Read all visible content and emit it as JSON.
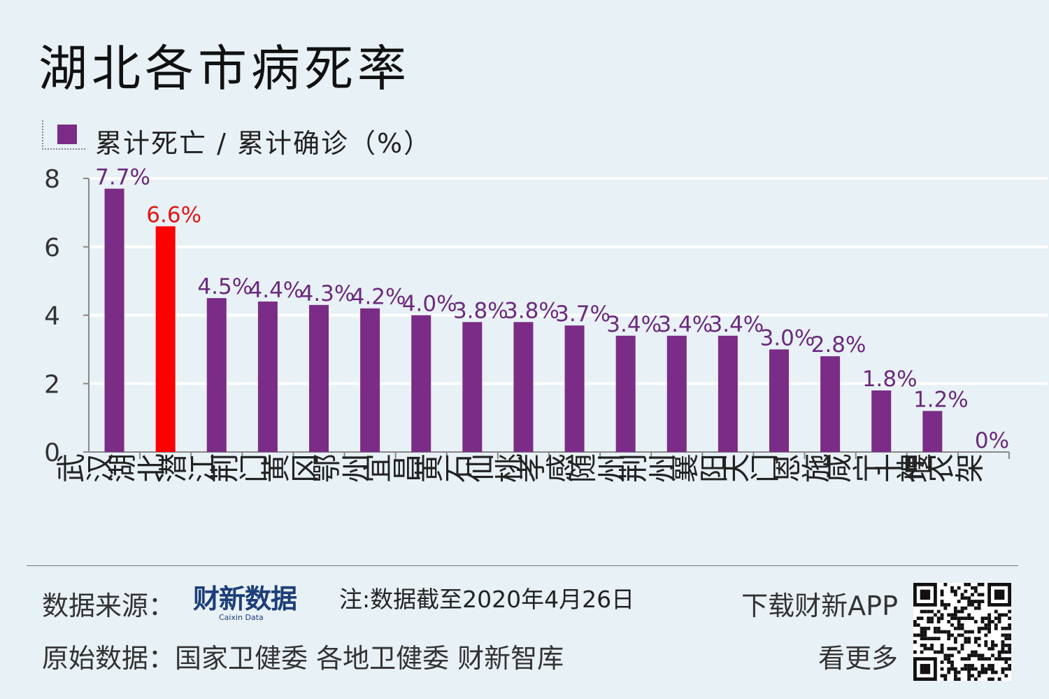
{
  "header": {
    "title": "湖北各市病死率"
  },
  "legend": {
    "label": "累计死亡 / 累计确诊（%）",
    "color": "#7a2c86"
  },
  "colors": {
    "default_bar": "#7a2c86",
    "highlight_bar": "#ff0000",
    "label_default": "#6b2a7e",
    "label_highlight": "#e31515"
  },
  "chart_data": {
    "type": "bar",
    "ylim": [
      0,
      8
    ],
    "yticks": [
      "0",
      "2",
      "4",
      "6",
      "8"
    ],
    "grid": true,
    "categories": [
      "武汉",
      "湖北",
      "潜江",
      "荆门",
      "黄冈",
      "鄂州",
      "宜昌",
      "黄石",
      "仙桃",
      "孝感",
      "随州",
      "荆州",
      "襄阳",
      "天门",
      "恩施",
      "咸宁",
      "十堰",
      "神农架"
    ],
    "values": [
      7.7,
      6.6,
      4.5,
      4.4,
      4.3,
      4.2,
      4.0,
      3.8,
      3.8,
      3.7,
      3.4,
      3.4,
      3.4,
      3.0,
      2.8,
      1.8,
      1.2,
      0
    ],
    "labels": [
      "7.7%",
      "6.6%",
      "4.5%",
      "4.4%",
      "4.3%",
      "4.2%",
      "4.0%",
      "3.8%",
      "3.8%",
      "3.7%",
      "3.4%",
      "3.4%",
      "3.4%",
      "3.0%",
      "2.8%",
      "1.8%",
      "1.2%",
      "0%"
    ],
    "highlight": "湖北"
  },
  "footer": {
    "source_label": "数据来源：",
    "logo_text": "财新数据",
    "logo_sub": "Caixin Data",
    "note": "注:数据截至2020年4月26日",
    "original_data": "原始数据：国家卫健委  各地卫健委  财新智库",
    "download": "下载财新APP",
    "see_more": "看更多"
  }
}
